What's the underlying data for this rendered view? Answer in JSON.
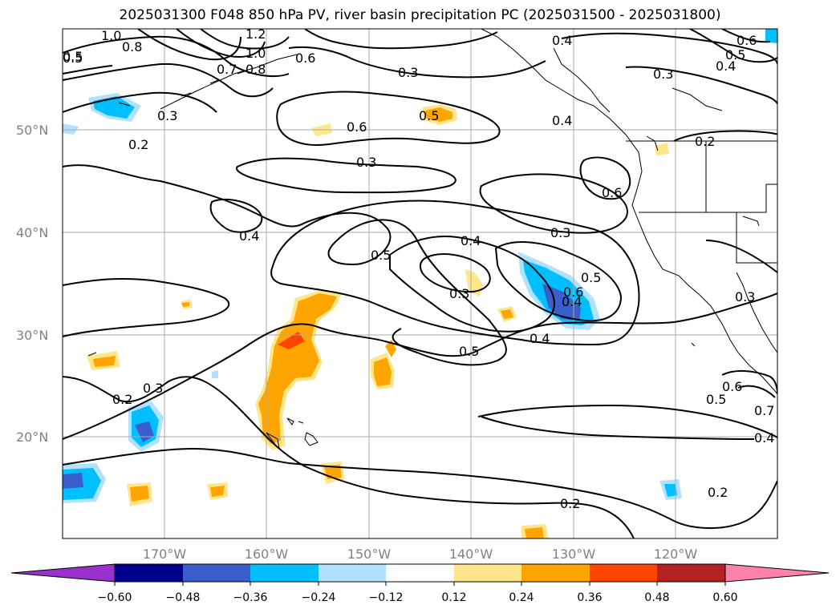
{
  "title": "2025031300 F048 850 hPa PV, river basin precipitation PC (2025031500 - 2025031800)",
  "latitude_labels": [
    "50°N",
    "40°N",
    "30°N",
    "20°N"
  ],
  "longitude_labels": [
    "170°W",
    "160°W",
    "150°W",
    "140°W",
    "130°W",
    "120°W"
  ],
  "contour_labels": [
    "1.0",
    "0.8",
    "1.2",
    "1.0",
    "0.8",
    "0.7",
    "0.6",
    "0.4",
    "0.3",
    "0.3",
    "0.5",
    "0.6",
    "0.3",
    "0.2",
    "0.5",
    "0.6",
    "0.5",
    "0.4",
    "0.4",
    "0.3",
    "0.2",
    "0.6",
    "0.3",
    "0.4",
    "0.4",
    "0.5",
    "0.3",
    "0.5",
    "0.6",
    "0.4",
    "0.5",
    "0.3",
    "0.4",
    "0.3",
    "0.2",
    "0.5",
    "0.6",
    "0.7",
    "0.4",
    "0.2",
    "0.2",
    "0.5"
  ],
  "colorbar": {
    "tick_labels": [
      "−0.60",
      "−0.48",
      "−0.36",
      "−0.24",
      "−0.12",
      "0.12",
      "0.24",
      "0.36",
      "0.48",
      "0.60"
    ],
    "colors": [
      "#9932cc",
      "#00008b",
      "#3a5fcd",
      "#00bfff",
      "#b0e2ff",
      "#ffffff",
      "#ffe68a",
      "#ffa500",
      "#ff4500",
      "#b22222",
      "#ff82ab"
    ]
  },
  "colors": {
    "land_outline": "#000000",
    "grid": "#a9a9a9",
    "contour": "#000000"
  }
}
